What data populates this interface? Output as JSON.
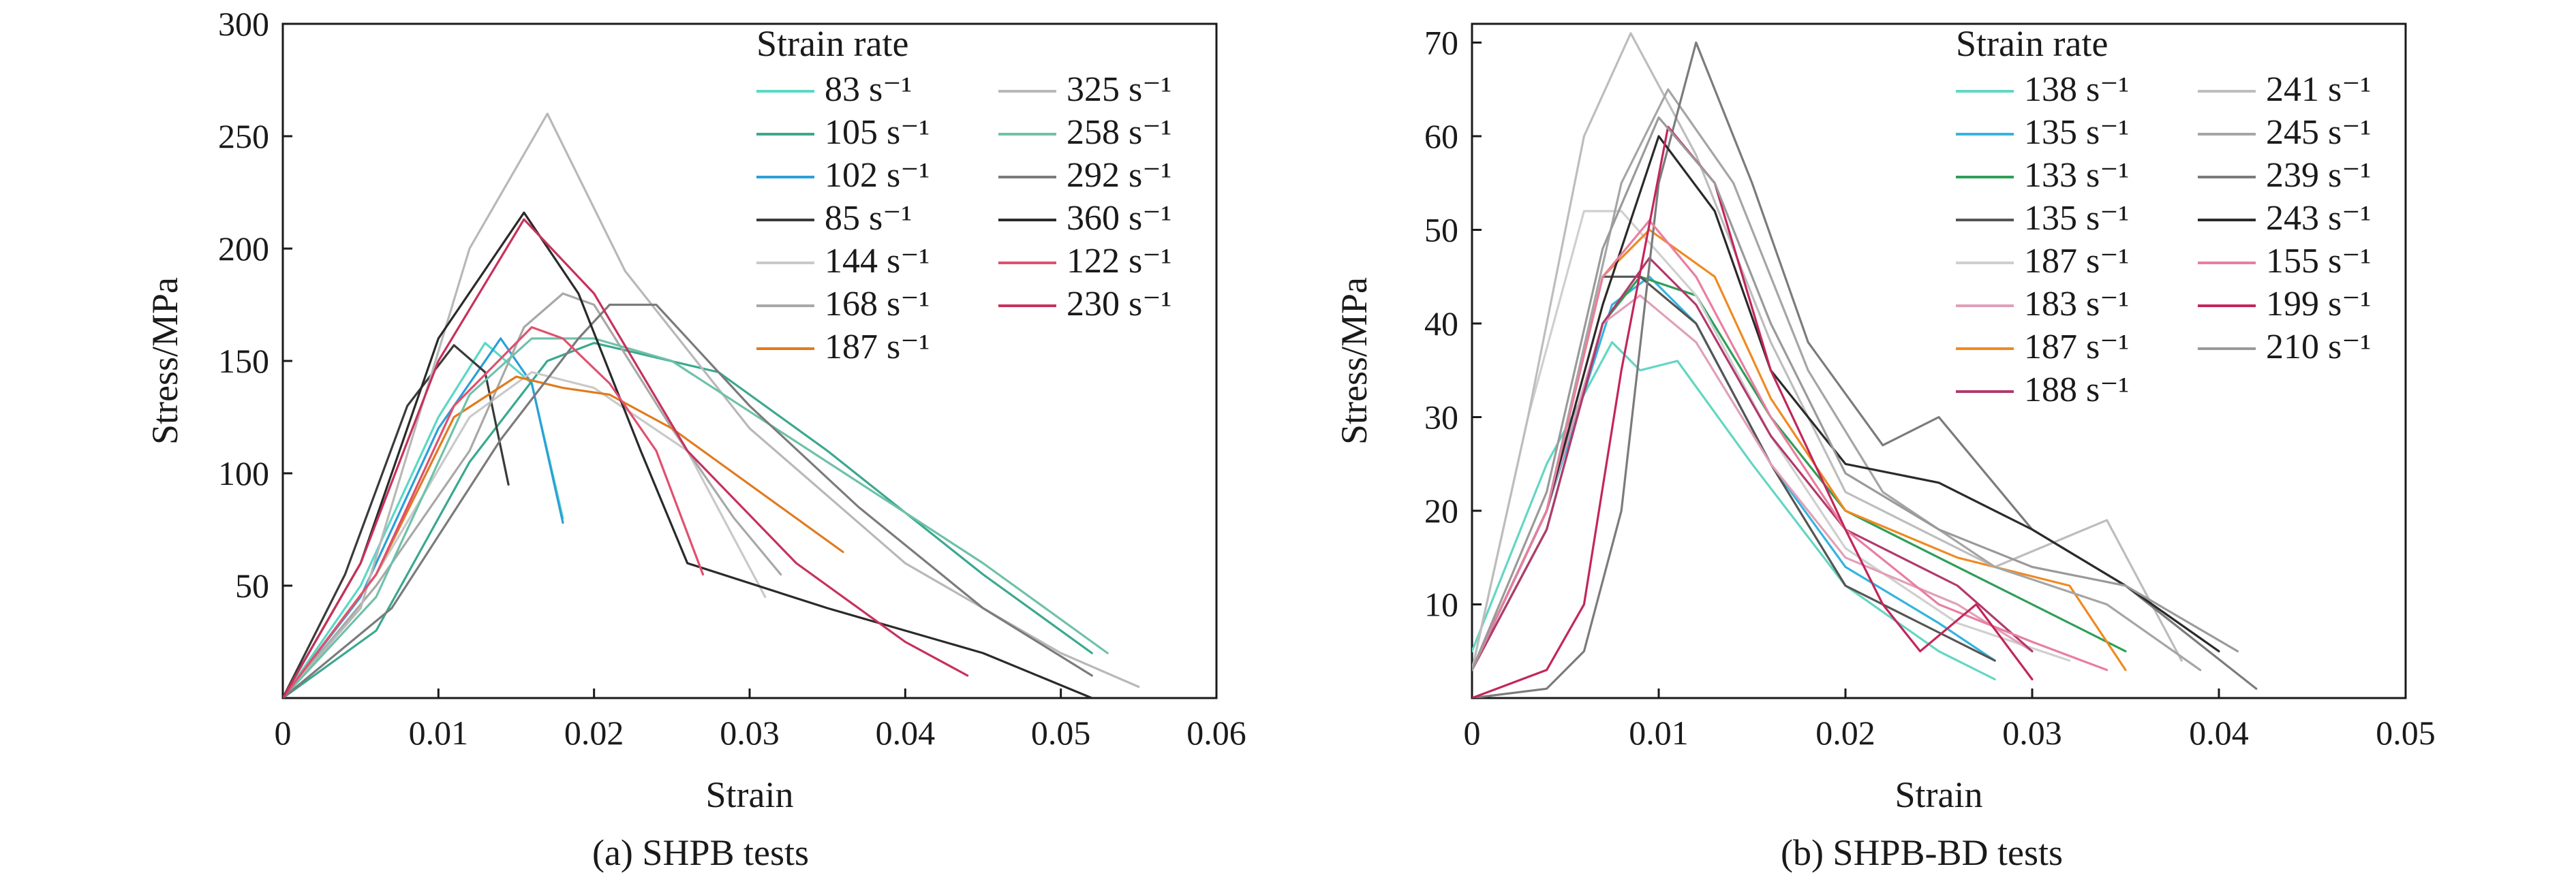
{
  "chart_data": [
    {
      "type": "line",
      "caption": "(a) SHPB tests",
      "xlabel": "Strain",
      "ylabel": "Stress/MPa",
      "xlim": [
        0,
        0.06
      ],
      "ylim": [
        0,
        300
      ],
      "x_ticks": [
        0,
        0.01,
        0.02,
        0.03,
        0.04,
        0.05,
        0.06
      ],
      "x_tick_labels": [
        "0",
        "0.01",
        "0.02",
        "0.03",
        "0.04",
        "0.05",
        "0.06"
      ],
      "y_ticks": [
        50,
        100,
        150,
        200,
        250,
        300
      ],
      "y_tick_labels": [
        "50",
        "100",
        "150",
        "200",
        "250",
        "300"
      ],
      "grid": false,
      "legend_title": "Strain rate",
      "legend_position": "top-right",
      "series": [
        {
          "name": "83 s⁻¹",
          "color": "#5ad8c6",
          "x": [
            0,
            0.005,
            0.01,
            0.013,
            0.016,
            0.018
          ],
          "y": [
            0,
            50,
            125,
            158,
            140,
            80
          ]
        },
        {
          "name": "105 s⁻¹",
          "color": "#3aa88f",
          "x": [
            0,
            0.006,
            0.012,
            0.017,
            0.02,
            0.028,
            0.035,
            0.045,
            0.052
          ],
          "y": [
            0,
            30,
            105,
            150,
            158,
            145,
            110,
            55,
            20
          ]
        },
        {
          "name": "102 s⁻¹",
          "color": "#2b9fd8",
          "x": [
            0,
            0.005,
            0.01,
            0.014,
            0.016,
            0.018
          ],
          "y": [
            0,
            45,
            120,
            160,
            140,
            78
          ]
        },
        {
          "name": "85 s⁻¹",
          "color": "#3a3a3a",
          "x": [
            0,
            0.004,
            0.008,
            0.011,
            0.013,
            0.0145
          ],
          "y": [
            0,
            55,
            130,
            157,
            145,
            95
          ]
        },
        {
          "name": "144 s⁻¹",
          "color": "#c9c9c9",
          "x": [
            0,
            0.006,
            0.012,
            0.016,
            0.02,
            0.026,
            0.031
          ],
          "y": [
            0,
            55,
            125,
            145,
            138,
            110,
            45
          ]
        },
        {
          "name": "168 s⁻¹",
          "color": "#a8a8a8",
          "x": [
            0,
            0.006,
            0.012,
            0.0155,
            0.018,
            0.02,
            0.025,
            0.029,
            0.032
          ],
          "y": [
            0,
            50,
            110,
            165,
            180,
            175,
            120,
            80,
            55
          ]
        },
        {
          "name": "187 s⁻¹",
          "color": "#e07b1f",
          "x": [
            0,
            0.006,
            0.011,
            0.015,
            0.018,
            0.021,
            0.025,
            0.028,
            0.033,
            0.036
          ],
          "y": [
            0,
            55,
            125,
            143,
            138,
            135,
            120,
            105,
            80,
            65
          ]
        },
        {
          "name": "325 s⁻¹",
          "color": "#b8b8b8",
          "x": [
            0,
            0.005,
            0.012,
            0.017,
            0.022,
            0.03,
            0.04,
            0.05,
            0.055
          ],
          "y": [
            0,
            40,
            200,
            260,
            190,
            120,
            60,
            20,
            5
          ]
        },
        {
          "name": "258 s⁻¹",
          "color": "#6fc1a9",
          "x": [
            0,
            0.006,
            0.012,
            0.016,
            0.02,
            0.025,
            0.035,
            0.045,
            0.053
          ],
          "y": [
            0,
            45,
            135,
            160,
            160,
            150,
            105,
            60,
            20
          ]
        },
        {
          "name": "292 s⁻¹",
          "color": "#7b7b7b",
          "x": [
            0,
            0.007,
            0.014,
            0.019,
            0.021,
            0.024,
            0.03,
            0.037,
            0.045,
            0.052
          ],
          "y": [
            0,
            40,
            115,
            160,
            175,
            175,
            130,
            85,
            40,
            10
          ]
        },
        {
          "name": "360 s⁻¹",
          "color": "#2a2a2a",
          "x": [
            0,
            0.005,
            0.01,
            0.0155,
            0.019,
            0.023,
            0.026,
            0.035,
            0.045,
            0.052
          ],
          "y": [
            0,
            60,
            160,
            216,
            180,
            110,
            60,
            40,
            20,
            0
          ]
        },
        {
          "name": "122 s⁻¹",
          "color": "#e0506f",
          "x": [
            0,
            0.006,
            0.011,
            0.016,
            0.018,
            0.021,
            0.024,
            0.027
          ],
          "y": [
            0,
            55,
            130,
            165,
            160,
            140,
            110,
            55
          ]
        },
        {
          "name": "230 s⁻¹",
          "color": "#c6325c",
          "x": [
            0,
            0.005,
            0.01,
            0.0155,
            0.02,
            0.026,
            0.033,
            0.04,
            0.044
          ],
          "y": [
            0,
            60,
            150,
            213,
            180,
            110,
            60,
            25,
            10
          ]
        }
      ]
    },
    {
      "type": "line",
      "caption": "(b) SHPB-BD tests",
      "xlabel": "Strain",
      "ylabel": "Stress/MPa",
      "xlim": [
        0,
        0.05
      ],
      "ylim": [
        0,
        72
      ],
      "x_ticks": [
        0,
        0.01,
        0.02,
        0.03,
        0.04,
        0.05
      ],
      "x_tick_labels": [
        "0",
        "0.01",
        "0.02",
        "0.03",
        "0.04",
        "0.05"
      ],
      "y_ticks": [
        10,
        20,
        30,
        40,
        50,
        60,
        70
      ],
      "y_tick_labels": [
        "10",
        "20",
        "30",
        "40",
        "50",
        "60",
        "70"
      ],
      "grid": false,
      "legend_title": "Strain rate",
      "legend_position": "top-right",
      "series": [
        {
          "name": "138 s⁻¹",
          "color": "#63d6c4",
          "x": [
            0,
            0.004,
            0.0075,
            0.009,
            0.011,
            0.015,
            0.02,
            0.025,
            0.028
          ],
          "y": [
            5,
            25,
            38,
            35,
            36,
            25,
            12,
            5,
            2
          ]
        },
        {
          "name": "135 s⁻¹",
          "color": "#34b4e0",
          "x": [
            0,
            0.004,
            0.0075,
            0.0095,
            0.012,
            0.016,
            0.02,
            0.025,
            0.028
          ],
          "y": [
            3,
            20,
            42,
            45,
            40,
            25,
            14,
            8,
            4
          ]
        },
        {
          "name": "133 s⁻¹",
          "color": "#2f9e58",
          "x": [
            0,
            0.004,
            0.007,
            0.009,
            0.012,
            0.016,
            0.02,
            0.025,
            0.03,
            0.035
          ],
          "y": [
            3,
            18,
            40,
            45,
            43,
            30,
            20,
            15,
            10,
            5
          ]
        },
        {
          "name": "135 s⁻¹",
          "color": "#555555",
          "x": [
            0,
            0.004,
            0.007,
            0.009,
            0.012,
            0.016,
            0.02,
            0.024,
            0.028
          ],
          "y": [
            3,
            20,
            45,
            45,
            40,
            25,
            12,
            8,
            4
          ]
        },
        {
          "name": "187 s⁻¹",
          "color": "#cfcfcf",
          "x": [
            0,
            0.003,
            0.006,
            0.008,
            0.012,
            0.016,
            0.02,
            0.026,
            0.032
          ],
          "y": [
            3,
            30,
            52,
            52,
            43,
            28,
            16,
            8,
            4
          ]
        },
        {
          "name": "183 s⁻¹",
          "color": "#e0a0b8",
          "x": [
            0,
            0.004,
            0.007,
            0.009,
            0.012,
            0.016,
            0.02,
            0.026,
            0.03
          ],
          "y": [
            3,
            20,
            40,
            43,
            38,
            25,
            15,
            10,
            5
          ]
        },
        {
          "name": "187 s⁻¹",
          "color": "#ef8a22",
          "x": [
            0,
            0.004,
            0.007,
            0.0095,
            0.013,
            0.016,
            0.02,
            0.026,
            0.032,
            0.035
          ],
          "y": [
            3,
            20,
            45,
            50,
            45,
            32,
            20,
            15,
            12,
            3
          ]
        },
        {
          "name": "188 s⁻¹",
          "color": "#b13a6b",
          "x": [
            0,
            0.004,
            0.007,
            0.0095,
            0.012,
            0.016,
            0.02,
            0.026,
            0.03
          ],
          "y": [
            3,
            18,
            40,
            47,
            42,
            28,
            18,
            12,
            5
          ]
        },
        {
          "name": "241 s⁻¹",
          "color": "#bdbdbd",
          "x": [
            0,
            0.003,
            0.006,
            0.0085,
            0.012,
            0.016,
            0.02,
            0.028,
            0.034,
            0.038
          ],
          "y": [
            3,
            30,
            60,
            71,
            58,
            38,
            22,
            14,
            19,
            4
          ]
        },
        {
          "name": "245 s⁻¹",
          "color": "#a5a5a5",
          "x": [
            0,
            0.004,
            0.008,
            0.0105,
            0.014,
            0.018,
            0.022,
            0.028,
            0.034,
            0.039
          ],
          "y": [
            3,
            20,
            55,
            65,
            55,
            35,
            22,
            14,
            10,
            3
          ]
        },
        {
          "name": "239 s⁻¹",
          "color": "#7b7b7b",
          "x": [
            0,
            0.004,
            0.006,
            0.008,
            0.01,
            0.012,
            0.015,
            0.018,
            0.022,
            0.025,
            0.03,
            0.035,
            0.042
          ],
          "y": [
            0,
            1,
            5,
            20,
            55,
            70,
            55,
            38,
            27,
            30,
            18,
            12,
            1
          ]
        },
        {
          "name": "243 s⁻¹",
          "color": "#2a2a2a",
          "x": [
            0,
            0.004,
            0.007,
            0.01,
            0.013,
            0.016,
            0.02,
            0.025,
            0.03,
            0.035,
            0.04
          ],
          "y": [
            3,
            20,
            42,
            60,
            52,
            35,
            25,
            23,
            18,
            12,
            5
          ]
        },
        {
          "name": "155 s⁻¹",
          "color": "#e87fa0",
          "x": [
            0,
            0.004,
            0.007,
            0.0095,
            0.012,
            0.016,
            0.02,
            0.025,
            0.03,
            0.034
          ],
          "y": [
            3,
            20,
            45,
            51,
            45,
            30,
            18,
            10,
            6,
            3
          ]
        },
        {
          "name": "199 s⁻¹",
          "color": "#c2275a",
          "x": [
            0,
            0.004,
            0.006,
            0.008,
            0.0105,
            0.013,
            0.016,
            0.02,
            0.022,
            0.024,
            0.027,
            0.03
          ],
          "y": [
            0,
            3,
            10,
            35,
            61,
            55,
            35,
            18,
            10,
            5,
            10,
            2
          ]
        },
        {
          "name": "210 s⁻¹",
          "color": "#9a9a9a",
          "x": [
            0,
            0.004,
            0.007,
            0.01,
            0.013,
            0.016,
            0.02,
            0.025,
            0.03,
            0.035,
            0.041
          ],
          "y": [
            3,
            22,
            48,
            62,
            55,
            40,
            24,
            18,
            14,
            12,
            5
          ]
        }
      ]
    }
  ]
}
